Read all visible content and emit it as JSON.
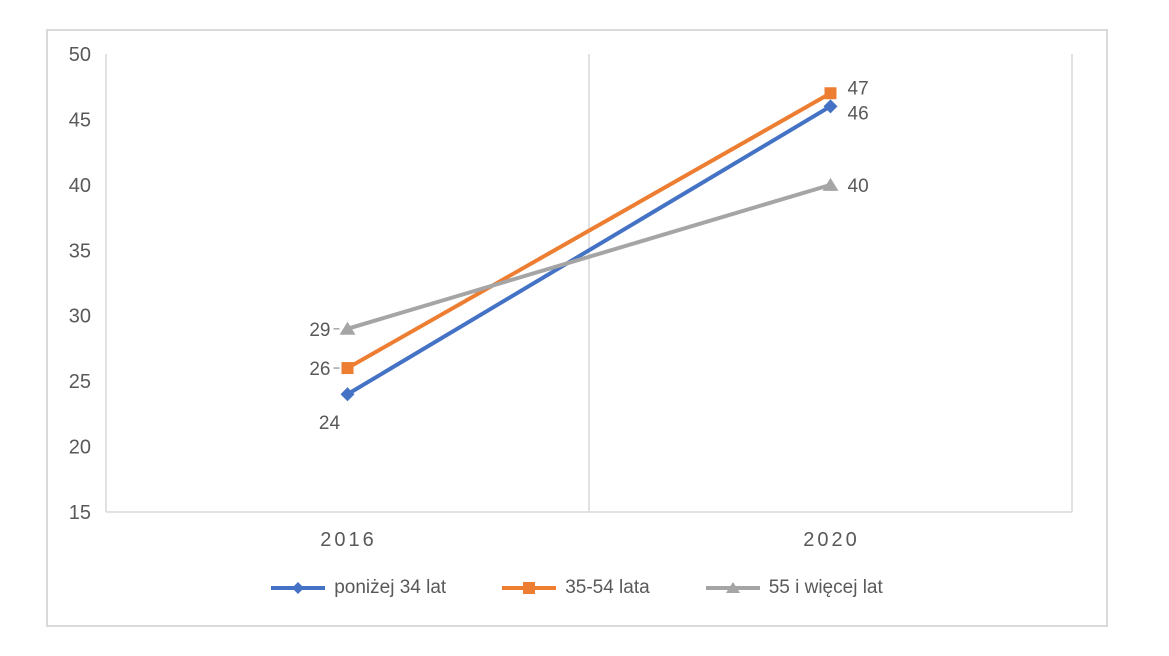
{
  "chart_data": {
    "type": "line",
    "title": "",
    "xlabel": "",
    "ylabel": "",
    "categories": [
      "2016",
      "2020"
    ],
    "series": [
      {
        "name": "poniżej 34 lat",
        "values": [
          24,
          46
        ],
        "color": "#4472C4",
        "marker": "diamond",
        "label_sides": [
          "below-left",
          "right"
        ],
        "label_dy": [
          0,
          6
        ],
        "leader": [
          false,
          false
        ]
      },
      {
        "name": "35-54 lata",
        "values": [
          26,
          47
        ],
        "color": "#ED7D31",
        "marker": "square",
        "label_sides": [
          "left",
          "right"
        ],
        "label_dy": [
          0,
          -6
        ],
        "leader": [
          true,
          false
        ]
      },
      {
        "name": "55 i więcej lat",
        "values": [
          29,
          40
        ],
        "color": "#A5A5A5",
        "marker": "triangle",
        "label_sides": [
          "left",
          "right"
        ],
        "label_dy": [
          0,
          0
        ],
        "leader": [
          true,
          false
        ]
      }
    ],
    "ylim": [
      15,
      50
    ],
    "yticks": [
      15,
      20,
      25,
      30,
      35,
      40,
      45,
      50
    ],
    "grid": {
      "vertical_category_boundaries": true,
      "horizontal": false
    },
    "legend_position": "bottom",
    "data_labels": true
  },
  "style": {
    "axis_color": "#D9D9D9",
    "grid_color": "#D9D9D9",
    "border_color": "#D9D9D9",
    "text_color": "#595959",
    "leader_color": "#A6A6A6",
    "background": "#FFFFFF"
  }
}
